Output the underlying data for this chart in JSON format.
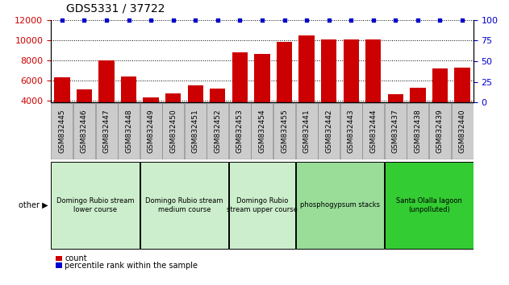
{
  "title": "GDS5331 / 37722",
  "categories": [
    "GSM832445",
    "GSM832446",
    "GSM832447",
    "GSM832448",
    "GSM832449",
    "GSM832450",
    "GSM832451",
    "GSM832452",
    "GSM832453",
    "GSM832454",
    "GSM832455",
    "GSM832441",
    "GSM832442",
    "GSM832443",
    "GSM832444",
    "GSM832437",
    "GSM832438",
    "GSM832439",
    "GSM832440"
  ],
  "counts": [
    6350,
    5100,
    8000,
    6400,
    4350,
    4700,
    5500,
    5200,
    8750,
    8650,
    9800,
    10500,
    10100,
    10100,
    10100,
    4650,
    5300,
    7200,
    7300
  ],
  "bar_color": "#cc0000",
  "dot_color": "#0000cc",
  "ylim_left": [
    3800,
    12000
  ],
  "ylim_right": [
    0,
    100
  ],
  "yticks_left": [
    4000,
    6000,
    8000,
    10000,
    12000
  ],
  "yticks_right": [
    0,
    25,
    50,
    75,
    100
  ],
  "groups": [
    {
      "label": "Domingo Rubio stream\nlower course",
      "start": 0,
      "end": 3,
      "color": "#cceecc"
    },
    {
      "label": "Domingo Rubio stream\nmedium course",
      "start": 4,
      "end": 7,
      "color": "#cceecc"
    },
    {
      "label": "Domingo Rubio\nstream upper course",
      "start": 8,
      "end": 10,
      "color": "#cceecc"
    },
    {
      "label": "phosphogypsum stacks",
      "start": 11,
      "end": 14,
      "color": "#99dd99"
    },
    {
      "label": "Santa Olalla lagoon\n(unpolluted)",
      "start": 15,
      "end": 18,
      "color": "#33cc33"
    }
  ],
  "legend_count_label": "count",
  "legend_pct_label": "percentile rank within the sample",
  "other_label": "other",
  "background_color": "#ffffff",
  "tick_bg_color": "#cccccc",
  "title_fontsize": 10,
  "tick_fontsize": 6.5
}
